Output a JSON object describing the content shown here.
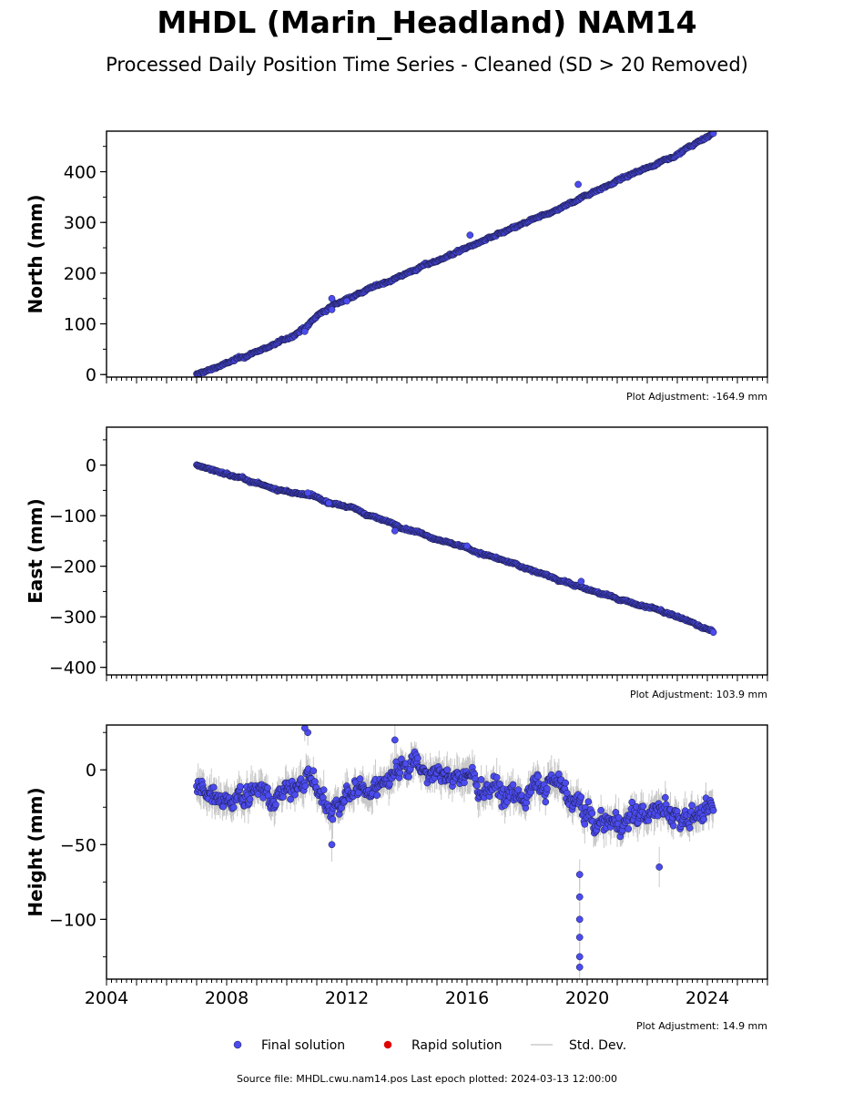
{
  "title": "MHDL (Marin_Headland) NAM14",
  "subtitle": "Processed Daily Position Time Series - Cleaned (SD > 20 Removed)",
  "source_note": "Source file: MHDL.cwu.nam14.pos  Last epoch plotted: 2024-03-13 12:00:00",
  "legend": [
    {
      "label": "Final solution",
      "color": "#4b4bf0",
      "kind": "dot"
    },
    {
      "label": "Rapid solution",
      "color": "#e00000",
      "kind": "dot"
    },
    {
      "label": "Std. Dev.",
      "color": "#cccccc",
      "kind": "line"
    }
  ],
  "colors": {
    "final": "#4b4bf0",
    "edge": "#1a1a40",
    "stddev": "#bdbdbd"
  },
  "chart_data": [
    {
      "type": "scatter",
      "ylabel": "North (mm)",
      "adjustment": "Plot Adjustment: -164.9 mm",
      "xlim": [
        2004,
        2026
      ],
      "ylim": [
        -5,
        480
      ],
      "yticks": [
        0,
        100,
        200,
        300,
        400
      ],
      "ytick_labels": [
        "0",
        "100",
        "200",
        "300",
        "400"
      ],
      "show_xtick_labels": false,
      "anchors": [
        [
          2007.0,
          0
        ],
        [
          2008.0,
          22
        ],
        [
          2009.0,
          45
        ],
        [
          2010.0,
          70
        ],
        [
          2010.7,
          95
        ],
        [
          2011.0,
          115
        ],
        [
          2011.5,
          135
        ],
        [
          2012.0,
          150
        ],
        [
          2013.0,
          175
        ],
        [
          2014.0,
          200
        ],
        [
          2015.0,
          225
        ],
        [
          2016.0,
          250
        ],
        [
          2017.0,
          275
        ],
        [
          2018.0,
          300
        ],
        [
          2019.0,
          325
        ],
        [
          2020.0,
          355
        ],
        [
          2021.0,
          382
        ],
        [
          2022.0,
          408
        ],
        [
          2023.0,
          435
        ],
        [
          2024.2,
          475
        ]
      ],
      "noise": 3,
      "outliers": [
        [
          2011.5,
          150
        ],
        [
          2011.5,
          128
        ],
        [
          2012.0,
          145
        ],
        [
          2016.1,
          275
        ],
        [
          2019.7,
          375
        ],
        [
          2010.6,
          85
        ]
      ]
    },
    {
      "type": "scatter",
      "ylabel": "East (mm)",
      "adjustment": "Plot Adjustment: 103.9 mm",
      "xlim": [
        2004,
        2026
      ],
      "ylim": [
        -415,
        75
      ],
      "yticks": [
        0,
        -100,
        -200,
        -300,
        -400
      ],
      "ytick_labels": [
        "0",
        "−100",
        "−200",
        "−300",
        "−400"
      ],
      "show_xtick_labels": false,
      "anchors": [
        [
          2007.0,
          0
        ],
        [
          2008.0,
          -18
        ],
        [
          2009.0,
          -37
        ],
        [
          2010.0,
          -52
        ],
        [
          2011.0,
          -65
        ],
        [
          2012.0,
          -82
        ],
        [
          2013.0,
          -105
        ],
        [
          2014.0,
          -125
        ],
        [
          2015.0,
          -145
        ],
        [
          2016.0,
          -165
        ],
        [
          2017.0,
          -185
        ],
        [
          2018.0,
          -205
        ],
        [
          2019.0,
          -225
        ],
        [
          2020.0,
          -245
        ],
        [
          2021.0,
          -265
        ],
        [
          2022.0,
          -280
        ],
        [
          2023.0,
          -300
        ],
        [
          2024.2,
          -330
        ]
      ],
      "noise": 3,
      "outliers": [
        [
          2010.7,
          -55
        ],
        [
          2011.4,
          -75
        ],
        [
          2013.6,
          -130
        ],
        [
          2016.0,
          -160
        ],
        [
          2019.8,
          -230
        ]
      ]
    },
    {
      "type": "scatter",
      "ylabel": "Height (mm)",
      "adjustment": "Plot Adjustment: 14.9 mm",
      "xlim": [
        2004,
        2026
      ],
      "ylim": [
        -140,
        30
      ],
      "yticks": [
        0,
        -50,
        -100
      ],
      "ytick_labels": [
        "0",
        "−50",
        "−100"
      ],
      "show_xtick_labels": true,
      "xticks": [
        2004,
        2008,
        2012,
        2016,
        2020,
        2024
      ],
      "anchors": [
        [
          2007.0,
          -15
        ],
        [
          2008.0,
          -18
        ],
        [
          2009.0,
          -15
        ],
        [
          2010.0,
          -15
        ],
        [
          2010.7,
          0
        ],
        [
          2011.5,
          -30
        ],
        [
          2012.0,
          -15
        ],
        [
          2013.0,
          -10
        ],
        [
          2014.0,
          5
        ],
        [
          2015.0,
          -5
        ],
        [
          2016.0,
          -5
        ],
        [
          2017.0,
          -15
        ],
        [
          2018.0,
          -15
        ],
        [
          2019.0,
          -10
        ],
        [
          2019.8,
          -25
        ],
        [
          2020.2,
          -35
        ],
        [
          2021.0,
          -35
        ],
        [
          2022.0,
          -30
        ],
        [
          2023.0,
          -30
        ],
        [
          2024.2,
          -30
        ]
      ],
      "noise": 9,
      "outliers": [
        [
          2019.75,
          -70
        ],
        [
          2019.75,
          -85
        ],
        [
          2019.75,
          -100
        ],
        [
          2019.75,
          -112
        ],
        [
          2019.75,
          -125
        ],
        [
          2019.75,
          -132
        ],
        [
          2010.7,
          25
        ],
        [
          2010.6,
          28
        ],
        [
          2011.5,
          -50
        ],
        [
          2022.4,
          -65
        ],
        [
          2013.6,
          20
        ]
      ]
    }
  ]
}
